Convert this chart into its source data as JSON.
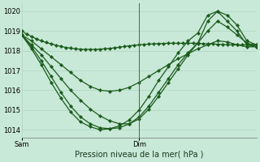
{
  "title": "Pression niveau de la mer( hPa )",
  "bg_color": "#c8e8d8",
  "grid_color": "#b0d4c0",
  "line_color": "#1a5c1a",
  "marker": "D",
  "marker_size": 2.2,
  "line_width": 0.9,
  "ylim": [
    1013.6,
    1020.4
  ],
  "yticks": [
    1014,
    1015,
    1016,
    1017,
    1018,
    1019,
    1020
  ],
  "xlim": [
    0,
    48
  ],
  "sam_x": 0,
  "dim_x": 24,
  "xtick_pos": [
    0,
    24
  ],
  "xtick_labels": [
    "Sam",
    "Dim"
  ],
  "series": [
    {
      "x": [
        0,
        1,
        2,
        3,
        4,
        5,
        6,
        7,
        8,
        9,
        10,
        11,
        12,
        13,
        14,
        15,
        16,
        17,
        18,
        19,
        20,
        21,
        22,
        23,
        24,
        25,
        26,
        27,
        28,
        29,
        30,
        31,
        32,
        33,
        34,
        35,
        36,
        37,
        38,
        39,
        40,
        41,
        42,
        43,
        44,
        45,
        46,
        47,
        48
      ],
      "y": [
        1019.0,
        1018.85,
        1018.72,
        1018.6,
        1018.5,
        1018.42,
        1018.35,
        1018.28,
        1018.22,
        1018.17,
        1018.13,
        1018.1,
        1018.08,
        1018.07,
        1018.07,
        1018.07,
        1018.08,
        1018.1,
        1018.12,
        1018.15,
        1018.18,
        1018.22,
        1018.25,
        1018.28,
        1018.3,
        1018.32,
        1018.34,
        1018.35,
        1018.36,
        1018.37,
        1018.38,
        1018.38,
        1018.38,
        1018.38,
        1018.38,
        1018.38,
        1018.37,
        1018.36,
        1018.35,
        1018.34,
        1018.33,
        1018.32,
        1018.31,
        1018.3,
        1018.3,
        1018.3,
        1018.3,
        1018.3,
        1018.3
      ]
    },
    {
      "x": [
        0,
        2,
        4,
        6,
        8,
        10,
        12,
        14,
        16,
        18,
        20,
        22,
        24,
        26,
        28,
        30,
        32,
        34,
        36,
        38,
        40,
        42,
        44,
        46,
        48
      ],
      "y": [
        1018.8,
        1018.3,
        1017.8,
        1017.2,
        1016.6,
        1016.0,
        1015.5,
        1015.05,
        1014.7,
        1014.45,
        1014.3,
        1014.3,
        1014.55,
        1015.05,
        1015.7,
        1016.4,
        1017.1,
        1017.8,
        1018.4,
        1019.0,
        1019.5,
        1019.2,
        1018.8,
        1018.4,
        1018.2
      ]
    },
    {
      "x": [
        0,
        2,
        4,
        6,
        8,
        10,
        12,
        14,
        16,
        18,
        20,
        22,
        24,
        26,
        28,
        30,
        32,
        34,
        36,
        38,
        40,
        42,
        44,
        46,
        48
      ],
      "y": [
        1018.8,
        1018.2,
        1017.5,
        1016.7,
        1015.9,
        1015.2,
        1014.65,
        1014.3,
        1014.1,
        1014.05,
        1014.1,
        1014.3,
        1014.65,
        1015.2,
        1015.9,
        1016.6,
        1017.3,
        1017.9,
        1018.4,
        1019.5,
        1020.0,
        1019.8,
        1019.3,
        1018.5,
        1018.3
      ]
    },
    {
      "x": [
        0,
        2,
        4,
        6,
        8,
        10,
        12,
        14,
        16,
        18,
        20,
        22,
        24,
        26,
        28,
        30,
        32,
        34,
        36,
        38,
        40,
        42,
        44,
        46,
        48
      ],
      "y": [
        1018.8,
        1018.1,
        1017.3,
        1016.4,
        1015.6,
        1014.9,
        1014.4,
        1014.15,
        1014.0,
        1014.05,
        1014.2,
        1014.5,
        1015.0,
        1015.7,
        1016.5,
        1017.2,
        1017.9,
        1018.5,
        1018.9,
        1019.8,
        1020.0,
        1019.5,
        1019.0,
        1018.3,
        1018.2
      ]
    },
    {
      "x": [
        0,
        2,
        4,
        6,
        8,
        10,
        12,
        14,
        16,
        18,
        20,
        22,
        24,
        26,
        28,
        30,
        32,
        34,
        36,
        38,
        40,
        42,
        44,
        46,
        48
      ],
      "y": [
        1018.8,
        1018.5,
        1018.1,
        1017.7,
        1017.3,
        1016.9,
        1016.5,
        1016.2,
        1016.0,
        1015.95,
        1016.0,
        1016.15,
        1016.4,
        1016.7,
        1017.0,
        1017.3,
        1017.6,
        1017.85,
        1018.1,
        1018.3,
        1018.5,
        1018.45,
        1018.3,
        1018.2,
        1018.2
      ]
    }
  ]
}
